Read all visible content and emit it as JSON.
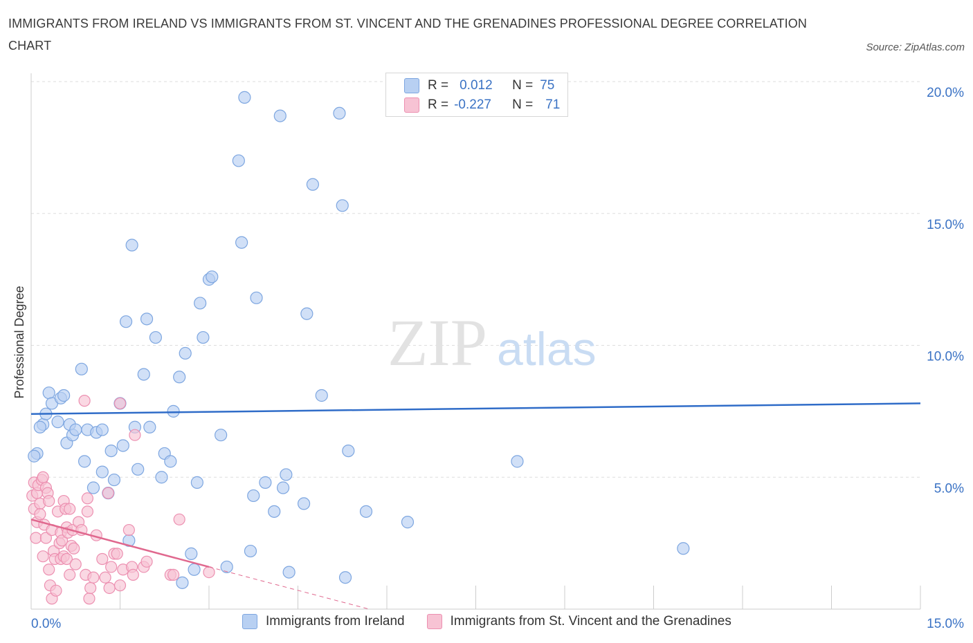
{
  "title": "IMMIGRANTS FROM IRELAND VS IMMIGRANTS FROM ST. VINCENT AND THE GRENADINES PROFESSIONAL DEGREE CORRELATION CHART",
  "source": "Source: ZipAtlas.com",
  "watermark": {
    "zip": "ZIP",
    "atlas": "atlas"
  },
  "legend": {
    "r_label": "R =",
    "n_label": "N =",
    "series": [
      {
        "r": "0.012",
        "n": "75"
      },
      {
        "r": "-0.227",
        "n": "71"
      }
    ]
  },
  "colors": {
    "blue_fill": "#b8d0f2",
    "blue_stroke": "#7da6e0",
    "blue_line": "#2f6cc8",
    "pink_fill": "#f7c3d4",
    "pink_stroke": "#ec8fb0",
    "pink_line": "#e0688e",
    "grid": "#dddddd",
    "tick_label": "#3a72c4"
  },
  "chart_data": {
    "type": "scatter",
    "title": "IMMIGRANTS FROM IRELAND VS IMMIGRANTS FROM ST. VINCENT AND THE GRENADINES PROFESSIONAL DEGREE CORRELATION CHART",
    "xlabel": "",
    "ylabel": "Professional Degree",
    "xlim": [
      0,
      15
    ],
    "ylim": [
      0,
      20
    ],
    "x_tick_labels": [
      "0.0%",
      "15.0%"
    ],
    "y_ticks": [
      5,
      10,
      15,
      20
    ],
    "y_tick_labels": [
      "5.0%",
      "10.0%",
      "15.0%",
      "20.0%"
    ],
    "grid": true,
    "legend_position": "top-center",
    "series": [
      {
        "name": "Immigrants from Ireland",
        "color": "blue",
        "trend": {
          "x": [
            0,
            15
          ],
          "y": [
            7.4,
            7.8
          ],
          "style": "solid"
        },
        "points": [
          [
            0.1,
            5.9
          ],
          [
            0.05,
            5.8
          ],
          [
            0.2,
            7.0
          ],
          [
            0.25,
            7.4
          ],
          [
            0.3,
            8.2
          ],
          [
            0.35,
            7.8
          ],
          [
            0.45,
            7.1
          ],
          [
            0.5,
            8.0
          ],
          [
            0.55,
            8.1
          ],
          [
            0.6,
            6.3
          ],
          [
            0.65,
            7.0
          ],
          [
            0.7,
            6.6
          ],
          [
            0.75,
            6.8
          ],
          [
            0.85,
            9.1
          ],
          [
            0.9,
            5.6
          ],
          [
            0.95,
            6.8
          ],
          [
            1.05,
            4.6
          ],
          [
            1.1,
            6.7
          ],
          [
            1.2,
            5.2
          ],
          [
            1.2,
            6.8
          ],
          [
            1.3,
            4.4
          ],
          [
            1.35,
            6.0
          ],
          [
            1.4,
            4.9
          ],
          [
            1.5,
            7.8
          ],
          [
            1.55,
            6.2
          ],
          [
            1.6,
            10.9
          ],
          [
            1.7,
            13.8
          ],
          [
            1.75,
            6.9
          ],
          [
            1.65,
            2.6
          ],
          [
            1.8,
            5.3
          ],
          [
            1.9,
            8.9
          ],
          [
            1.95,
            11.0
          ],
          [
            2.0,
            6.9
          ],
          [
            2.1,
            10.3
          ],
          [
            2.2,
            5.0
          ],
          [
            2.25,
            5.9
          ],
          [
            2.35,
            5.6
          ],
          [
            2.4,
            7.5
          ],
          [
            2.5,
            8.8
          ],
          [
            2.55,
            1.0
          ],
          [
            2.6,
            9.7
          ],
          [
            2.7,
            2.1
          ],
          [
            2.75,
            1.5
          ],
          [
            2.8,
            4.8
          ],
          [
            2.85,
            11.6
          ],
          [
            2.9,
            10.3
          ],
          [
            3.0,
            12.5
          ],
          [
            3.05,
            12.6
          ],
          [
            3.2,
            6.6
          ],
          [
            3.3,
            1.6
          ],
          [
            3.5,
            17.0
          ],
          [
            3.55,
            13.9
          ],
          [
            3.6,
            19.4
          ],
          [
            3.7,
            2.2
          ],
          [
            3.75,
            4.3
          ],
          [
            3.8,
            11.8
          ],
          [
            3.95,
            4.8
          ],
          [
            4.1,
            3.7
          ],
          [
            4.2,
            18.7
          ],
          [
            4.25,
            4.6
          ],
          [
            4.3,
            5.1
          ],
          [
            4.35,
            1.4
          ],
          [
            4.6,
            4.0
          ],
          [
            4.65,
            11.2
          ],
          [
            4.75,
            16.1
          ],
          [
            4.9,
            8.1
          ],
          [
            5.2,
            18.8
          ],
          [
            5.25,
            15.3
          ],
          [
            5.3,
            1.2
          ],
          [
            5.35,
            6.0
          ],
          [
            5.65,
            3.7
          ],
          [
            6.35,
            3.3
          ],
          [
            8.2,
            5.6
          ],
          [
            11.0,
            2.3
          ],
          [
            0.15,
            6.9
          ]
        ]
      },
      {
        "name": "Immigrants from St. Vincent and the Grenadines",
        "color": "pink",
        "trend": {
          "x": [
            0,
            3.0
          ],
          "y": [
            3.4,
            1.6
          ],
          "style": "solid",
          "dashed_extension_to": [
            5.7,
            0
          ]
        },
        "points": [
          [
            0.02,
            4.3
          ],
          [
            0.05,
            4.8
          ],
          [
            0.05,
            3.8
          ],
          [
            0.08,
            2.7
          ],
          [
            0.1,
            4.4
          ],
          [
            0.1,
            3.3
          ],
          [
            0.12,
            4.7
          ],
          [
            0.15,
            4.0
          ],
          [
            0.15,
            3.6
          ],
          [
            0.18,
            4.9
          ],
          [
            0.2,
            5.0
          ],
          [
            0.2,
            2.0
          ],
          [
            0.22,
            3.2
          ],
          [
            0.25,
            4.6
          ],
          [
            0.25,
            2.7
          ],
          [
            0.28,
            4.4
          ],
          [
            0.3,
            1.5
          ],
          [
            0.3,
            4.1
          ],
          [
            0.32,
            0.9
          ],
          [
            0.35,
            3.0
          ],
          [
            0.35,
            0.4
          ],
          [
            0.38,
            2.2
          ],
          [
            0.4,
            1.9
          ],
          [
            0.42,
            0.7
          ],
          [
            0.45,
            3.7
          ],
          [
            0.48,
            2.5
          ],
          [
            0.5,
            1.9
          ],
          [
            0.5,
            2.9
          ],
          [
            0.52,
            2.6
          ],
          [
            0.55,
            4.1
          ],
          [
            0.55,
            2.0
          ],
          [
            0.58,
            3.8
          ],
          [
            0.6,
            3.1
          ],
          [
            0.6,
            1.9
          ],
          [
            0.62,
            2.9
          ],
          [
            0.65,
            1.3
          ],
          [
            0.65,
            3.8
          ],
          [
            0.68,
            2.4
          ],
          [
            0.7,
            3.0
          ],
          [
            0.72,
            2.3
          ],
          [
            0.75,
            1.7
          ],
          [
            0.8,
            3.3
          ],
          [
            0.85,
            3.0
          ],
          [
            0.9,
            7.9
          ],
          [
            0.92,
            1.3
          ],
          [
            0.95,
            4.2
          ],
          [
            0.95,
            3.7
          ],
          [
            0.98,
            0.4
          ],
          [
            1.0,
            0.8
          ],
          [
            1.05,
            1.2
          ],
          [
            1.1,
            2.8
          ],
          [
            1.2,
            1.9
          ],
          [
            1.25,
            1.2
          ],
          [
            1.3,
            4.4
          ],
          [
            1.32,
            0.8
          ],
          [
            1.35,
            1.6
          ],
          [
            1.4,
            2.1
          ],
          [
            1.45,
            2.1
          ],
          [
            1.5,
            0.9
          ],
          [
            1.5,
            7.8
          ],
          [
            1.55,
            1.5
          ],
          [
            1.65,
            3.0
          ],
          [
            1.7,
            1.6
          ],
          [
            1.72,
            1.3
          ],
          [
            1.75,
            6.6
          ],
          [
            1.9,
            1.6
          ],
          [
            1.95,
            1.8
          ],
          [
            2.35,
            1.3
          ],
          [
            2.4,
            1.3
          ],
          [
            2.5,
            3.4
          ],
          [
            3.0,
            1.4
          ]
        ]
      }
    ]
  },
  "bottom_legend": [
    "Immigrants from Ireland",
    "Immigrants from St. Vincent and the Grenadines"
  ]
}
